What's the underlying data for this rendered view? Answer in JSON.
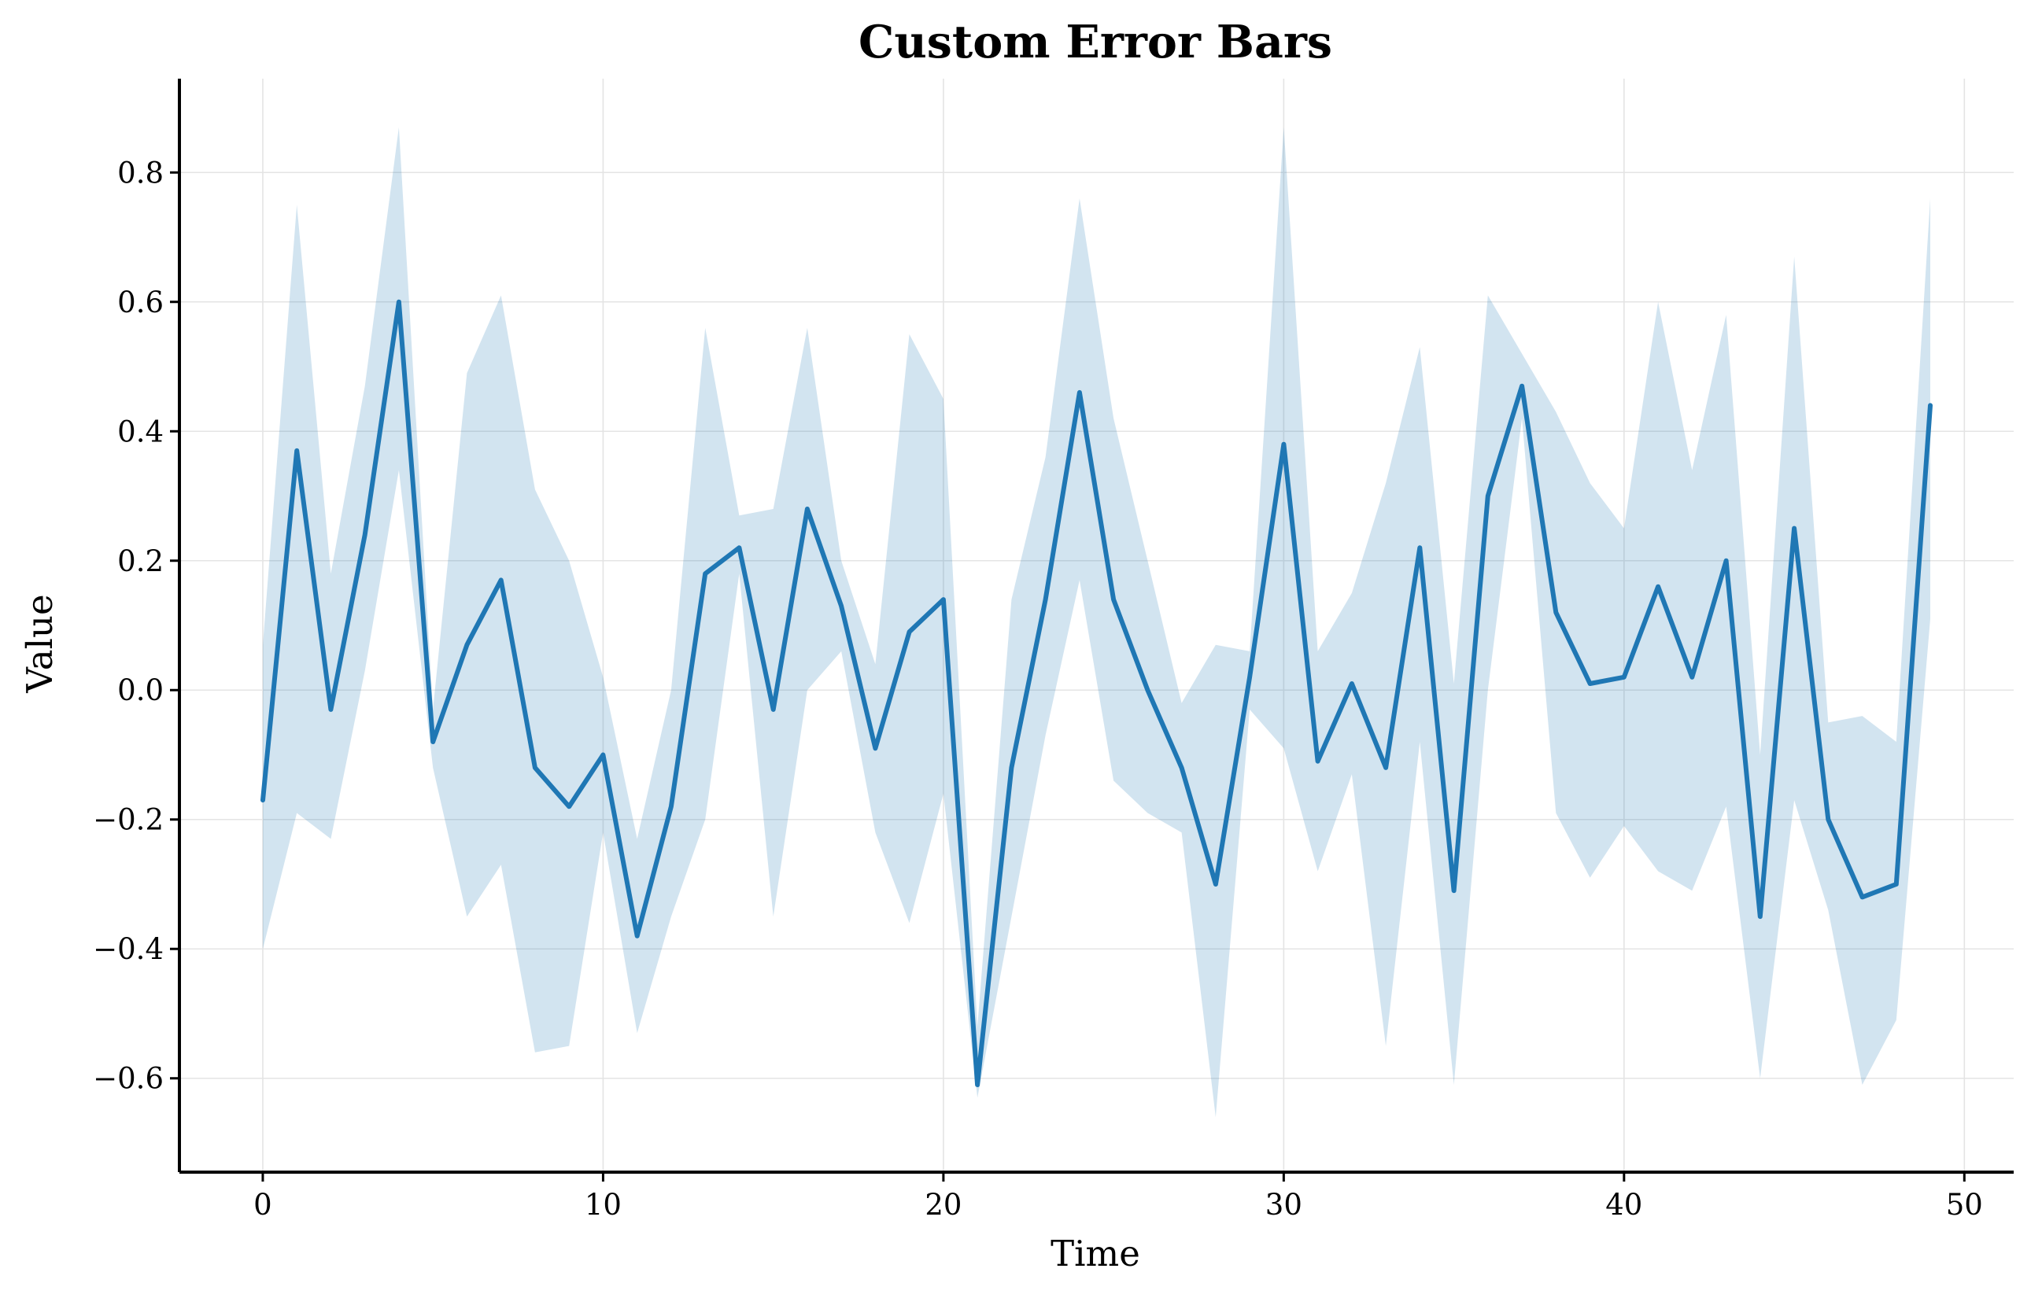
{
  "chart_data": {
    "type": "line",
    "title": "Custom Error Bars",
    "xlabel": "Time",
    "ylabel": "Value",
    "xlim": [
      -2.45,
      51.45
    ],
    "ylim": [
      -0.745,
      0.945
    ],
    "xticks": [
      0,
      10,
      20,
      30,
      40,
      50
    ],
    "xtick_labels": [
      "0",
      "10",
      "20",
      "30",
      "40",
      "50"
    ],
    "yticks": [
      -0.6,
      -0.4,
      -0.2,
      0.0,
      0.2,
      0.4,
      0.6,
      0.8
    ],
    "ytick_labels": [
      "−0.6",
      "−0.4",
      "−0.2",
      "0.0",
      "0.2",
      "0.4",
      "0.6",
      "0.8"
    ],
    "grid": true,
    "colors": {
      "line": "#1f77b4",
      "band": "#1f77b4",
      "band_opacity": 0.2
    },
    "x": [
      0,
      1,
      2,
      3,
      4,
      5,
      6,
      7,
      8,
      9,
      10,
      11,
      12,
      13,
      14,
      15,
      16,
      17,
      18,
      19,
      20,
      21,
      22,
      23,
      24,
      25,
      26,
      27,
      28,
      29,
      30,
      31,
      32,
      33,
      34,
      35,
      36,
      37,
      38,
      39,
      40,
      41,
      42,
      43,
      44,
      45,
      46,
      47,
      48,
      49
    ],
    "series": [
      {
        "values": [
          -0.17,
          0.37,
          -0.03,
          0.24,
          0.6,
          -0.08,
          0.07,
          0.17,
          -0.12,
          -0.18,
          -0.1,
          -0.38,
          -0.18,
          0.18,
          0.22,
          -0.03,
          0.28,
          0.13,
          -0.09,
          0.09,
          0.14,
          -0.61,
          -0.12,
          0.14,
          0.46,
          0.14,
          0.0,
          -0.12,
          -0.3,
          0.02,
          0.38,
          -0.11,
          0.01,
          -0.12,
          0.22,
          -0.31,
          0.3,
          0.47,
          0.12,
          0.01,
          0.02,
          0.16,
          0.02,
          0.2,
          -0.35,
          0.25,
          -0.2,
          -0.32,
          -0.3,
          0.44
        ],
        "lower": [
          -0.4,
          -0.19,
          -0.23,
          0.03,
          0.34,
          -0.12,
          -0.35,
          -0.27,
          -0.56,
          -0.55,
          -0.22,
          -0.53,
          -0.35,
          -0.2,
          0.18,
          -0.35,
          0.0,
          0.06,
          -0.22,
          -0.36,
          -0.16,
          -0.63,
          -0.35,
          -0.07,
          0.17,
          -0.14,
          -0.19,
          -0.22,
          -0.66,
          -0.03,
          -0.09,
          -0.28,
          -0.13,
          -0.55,
          -0.08,
          -0.61,
          0.0,
          0.42,
          -0.19,
          -0.29,
          -0.21,
          -0.28,
          -0.31,
          -0.18,
          -0.6,
          -0.17,
          -0.34,
          -0.61,
          -0.51,
          0.11
        ],
        "upper": [
          0.07,
          0.75,
          0.18,
          0.47,
          0.87,
          -0.03,
          0.49,
          0.61,
          0.31,
          0.2,
          0.02,
          -0.23,
          0.0,
          0.56,
          0.27,
          0.28,
          0.56,
          0.2,
          0.04,
          0.55,
          0.45,
          -0.52,
          0.14,
          0.36,
          0.76,
          0.42,
          0.2,
          -0.02,
          0.07,
          0.06,
          0.87,
          0.06,
          0.15,
          0.32,
          0.53,
          0.01,
          0.61,
          0.52,
          0.43,
          0.32,
          0.25,
          0.6,
          0.34,
          0.58,
          -0.1,
          0.67,
          -0.05,
          -0.04,
          -0.08,
          0.76
        ]
      }
    ]
  }
}
